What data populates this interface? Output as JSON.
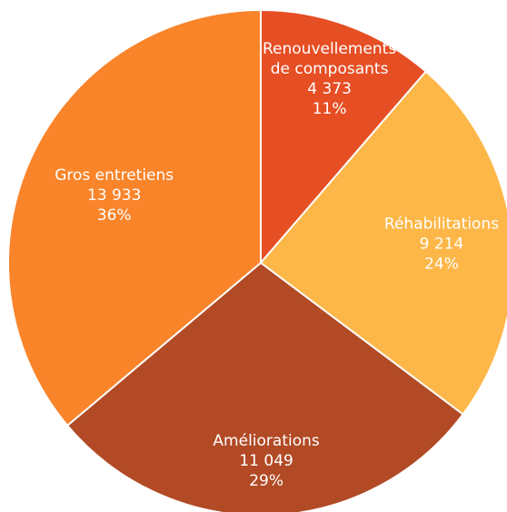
{
  "chart_data": {
    "type": "pie",
    "start_angle_deg": 0,
    "direction": "clockwise",
    "slices": [
      {
        "label_lines": [
          "Renouvellements",
          "de composants"
        ],
        "value_label": "4 373",
        "percent_label": "11%",
        "value": 4373,
        "color": "#e64e24"
      },
      {
        "label_lines": [
          "Réhabilitations"
        ],
        "value_label": "9 214",
        "percent_label": "24%",
        "value": 9214,
        "color": "#fdb748"
      },
      {
        "label_lines": [
          "Améliorations"
        ],
        "value_label": "11 049",
        "percent_label": "29%",
        "value": 11049,
        "color": "#b14a25"
      },
      {
        "label_lines": [
          "Gros entretiens"
        ],
        "value_label": "13 933",
        "percent_label": "36%",
        "value": 13933,
        "color": "#f9842a"
      }
    ]
  }
}
